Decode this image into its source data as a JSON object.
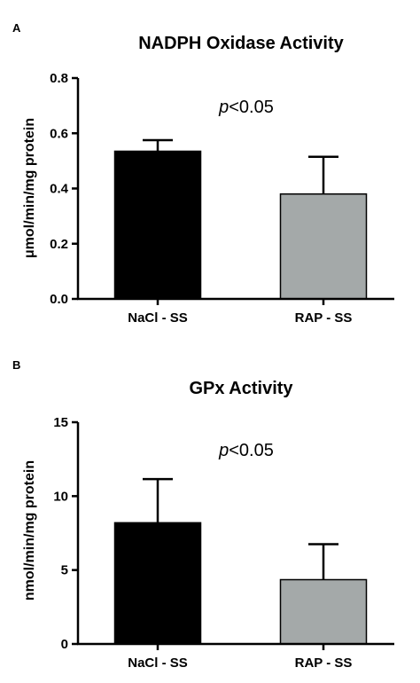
{
  "chart_data": [
    {
      "panel": "A",
      "type": "bar",
      "title": "NADPH Oxidase Activity",
      "ylabel": "μmol/min/mg protein",
      "xlabel": "",
      "categories": [
        "NaCl - SS",
        "RAP - SS"
      ],
      "values": [
        0.535,
        0.38
      ],
      "errors": [
        0.04,
        0.135
      ],
      "ylim": [
        0,
        0.8
      ],
      "yticks": [
        "0.0",
        "0.2",
        "0.4",
        "0.6",
        "0.8"
      ],
      "annotation": {
        "italic": "p",
        "text": "<0.05"
      },
      "grid": false,
      "colors": [
        "#000000",
        "#a4a9a9"
      ]
    },
    {
      "panel": "B",
      "type": "bar",
      "title": "GPx Activity",
      "ylabel": "nmol/min/mg protein",
      "xlabel": "",
      "categories": [
        "NaCl - SS",
        "RAP - SS"
      ],
      "values": [
        8.2,
        4.35
      ],
      "errors": [
        2.95,
        2.4
      ],
      "ylim": [
        0,
        15
      ],
      "yticks": [
        "0",
        "5",
        "10",
        "15"
      ],
      "annotation": {
        "italic": "p",
        "text": "<0.05"
      },
      "grid": false,
      "colors": [
        "#000000",
        "#a4a9a9"
      ]
    }
  ]
}
